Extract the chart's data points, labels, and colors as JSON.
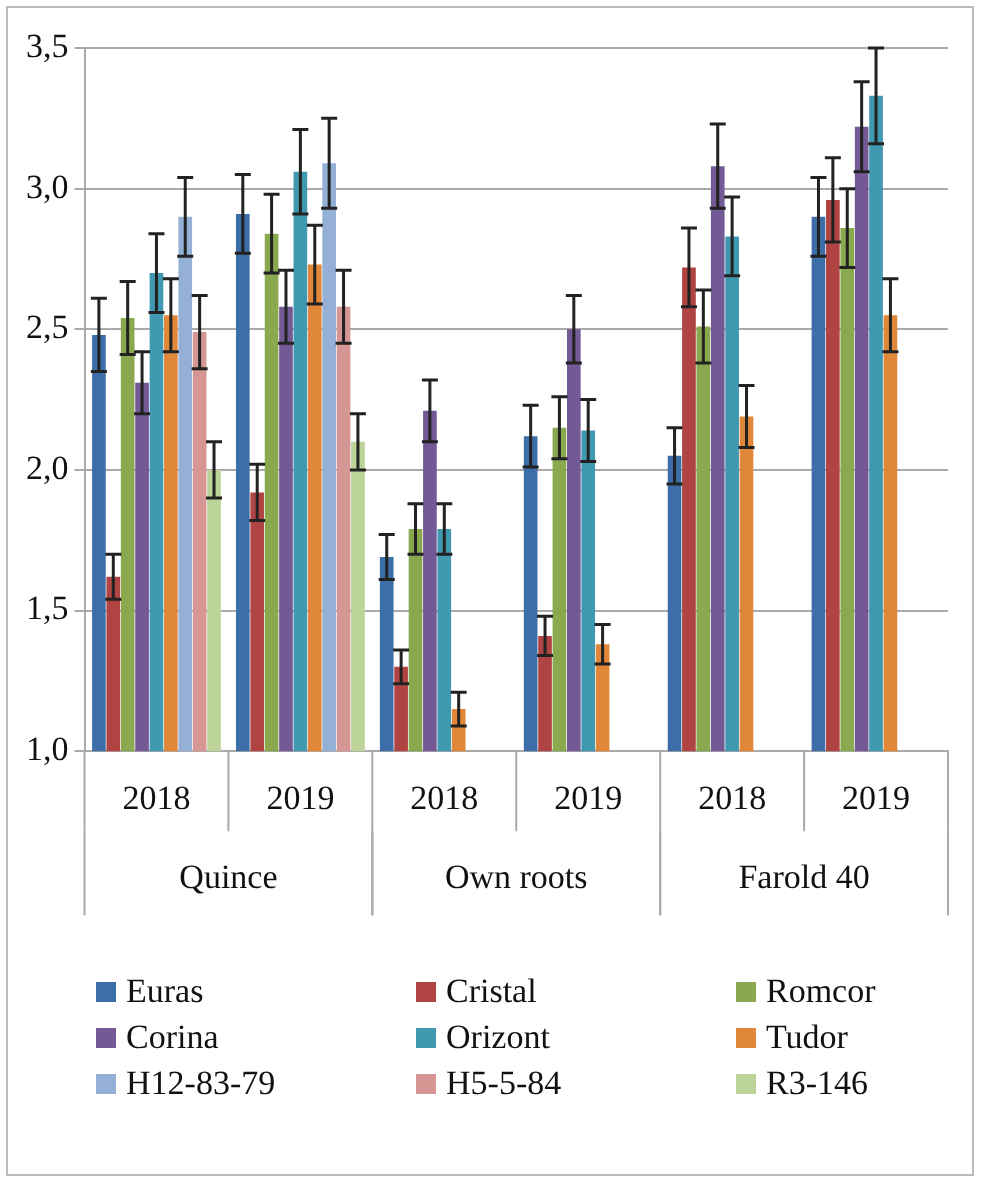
{
  "chart_data": {
    "type": "bar",
    "categories": [
      "2018",
      "2019",
      "2018",
      "2019",
      "2018",
      "2019"
    ],
    "annotations": [
      "Quince",
      "Own roots",
      "Farold 40"
    ],
    "ylim": [
      1.0,
      3.5
    ],
    "yticks": [
      {
        "value": 1.0,
        "label": "1,0"
      },
      {
        "value": 1.5,
        "label": "1,5"
      },
      {
        "value": 2.0,
        "label": "2,0"
      },
      {
        "value": 2.5,
        "label": "2,5"
      },
      {
        "value": 3.0,
        "label": "3,0"
      },
      {
        "value": 3.5,
        "label": "3,5"
      }
    ],
    "grid": "y",
    "legend": "bottom",
    "series": [
      {
        "name": "Euras",
        "color": "#3d6ea8",
        "values": [
          2.48,
          2.91,
          1.69,
          2.12,
          2.05,
          2.9
        ],
        "errors": [
          0.13,
          0.14,
          0.08,
          0.11,
          0.1,
          0.14
        ]
      },
      {
        "name": "Cristal",
        "color": "#b04442",
        "values": [
          1.62,
          1.92,
          1.3,
          1.41,
          2.72,
          2.96
        ],
        "errors": [
          0.08,
          0.1,
          0.06,
          0.07,
          0.14,
          0.15
        ]
      },
      {
        "name": "Romcor",
        "color": "#8aa84d",
        "values": [
          2.54,
          2.84,
          1.79,
          2.15,
          2.51,
          2.86
        ],
        "errors": [
          0.13,
          0.14,
          0.09,
          0.11,
          0.13,
          0.14
        ]
      },
      {
        "name": "Corina",
        "color": "#735a96",
        "values": [
          2.31,
          2.58,
          2.21,
          2.5,
          3.08,
          3.22
        ],
        "errors": [
          0.11,
          0.13,
          0.11,
          0.12,
          0.15,
          0.16
        ]
      },
      {
        "name": "Orizont",
        "color": "#4099b0",
        "values": [
          2.7,
          3.06,
          1.79,
          2.14,
          2.83,
          3.33
        ],
        "errors": [
          0.14,
          0.15,
          0.09,
          0.11,
          0.14,
          0.17
        ]
      },
      {
        "name": "Tudor",
        "color": "#e0873a",
        "values": [
          2.55,
          2.73,
          1.15,
          1.38,
          2.19,
          2.55
        ],
        "errors": [
          0.13,
          0.14,
          0.06,
          0.07,
          0.11,
          0.13
        ]
      },
      {
        "name": "H12-83-79",
        "color": "#95b0d6",
        "values": [
          2.9,
          3.09,
          null,
          null,
          null,
          null
        ],
        "errors": [
          0.14,
          0.16,
          null,
          null,
          null,
          null
        ]
      },
      {
        "name": "H5-5-84",
        "color": "#d69694",
        "values": [
          2.49,
          2.58,
          null,
          null,
          null,
          null
        ],
        "errors": [
          0.13,
          0.13,
          null,
          null,
          null,
          null
        ]
      },
      {
        "name": "R3-146",
        "color": "#bcd39a",
        "values": [
          2.0,
          2.1,
          null,
          null,
          null,
          null
        ],
        "errors": [
          0.1,
          0.1,
          null,
          null,
          null,
          null
        ]
      }
    ]
  }
}
